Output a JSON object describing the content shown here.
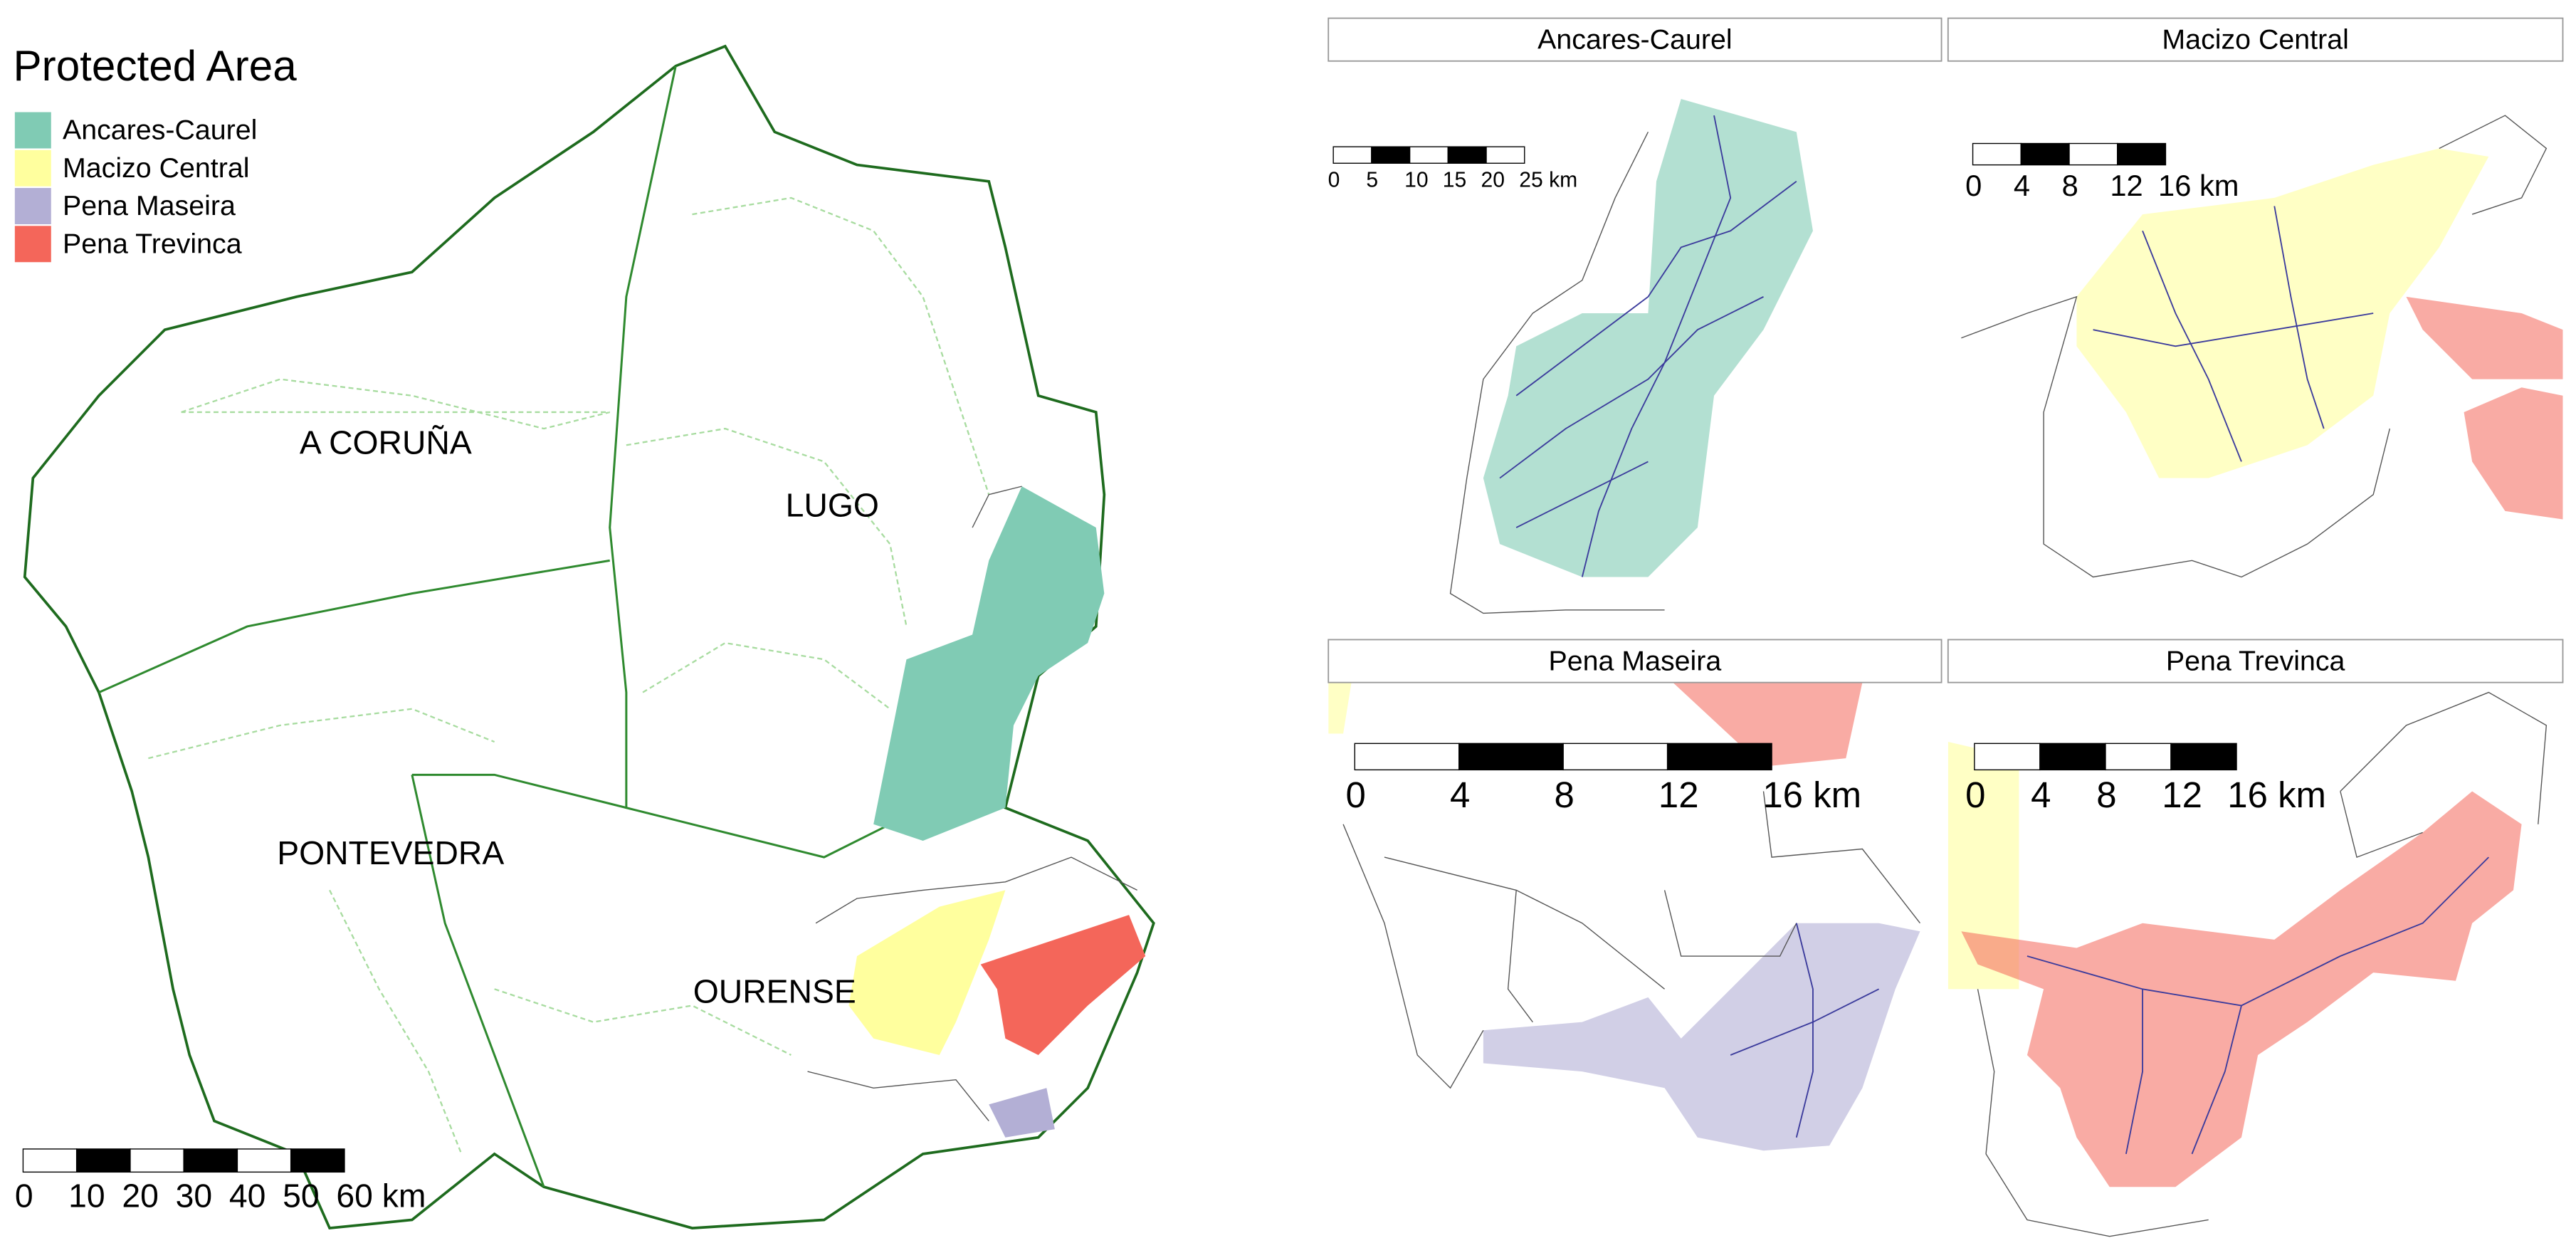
{
  "legend": {
    "title": "Protected Area",
    "items": [
      {
        "label": "Ancares-Caurel",
        "color": "#80cbb4"
      },
      {
        "label": "Macizo Central",
        "color": "#ffff9e"
      },
      {
        "label": "Pena Maseira",
        "color": "#b3afd5"
      },
      {
        "label": "Pena Trevinca",
        "color": "#f4665a"
      }
    ]
  },
  "provinces": [
    "A CORUÑA",
    "LUGO",
    "PONTEVEDRA",
    "OURENSE"
  ],
  "main_scale": [
    "0",
    "10",
    "20",
    "30",
    "40",
    "50",
    "60 km"
  ],
  "panels": [
    {
      "title": "Ancares-Caurel",
      "scale": [
        "0",
        "5",
        "10",
        "15",
        "20",
        "25 km"
      ]
    },
    {
      "title": "Macizo Central",
      "scale": [
        "0",
        "4",
        "8",
        "12",
        "16 km"
      ]
    },
    {
      "title": "Pena Maseira",
      "scale": [
        "0",
        "4",
        "8",
        "12",
        "16 km"
      ]
    },
    {
      "title": "Pena Trevinca",
      "scale": [
        "0",
        "4",
        "8",
        "12",
        "16 km"
      ]
    }
  ]
}
